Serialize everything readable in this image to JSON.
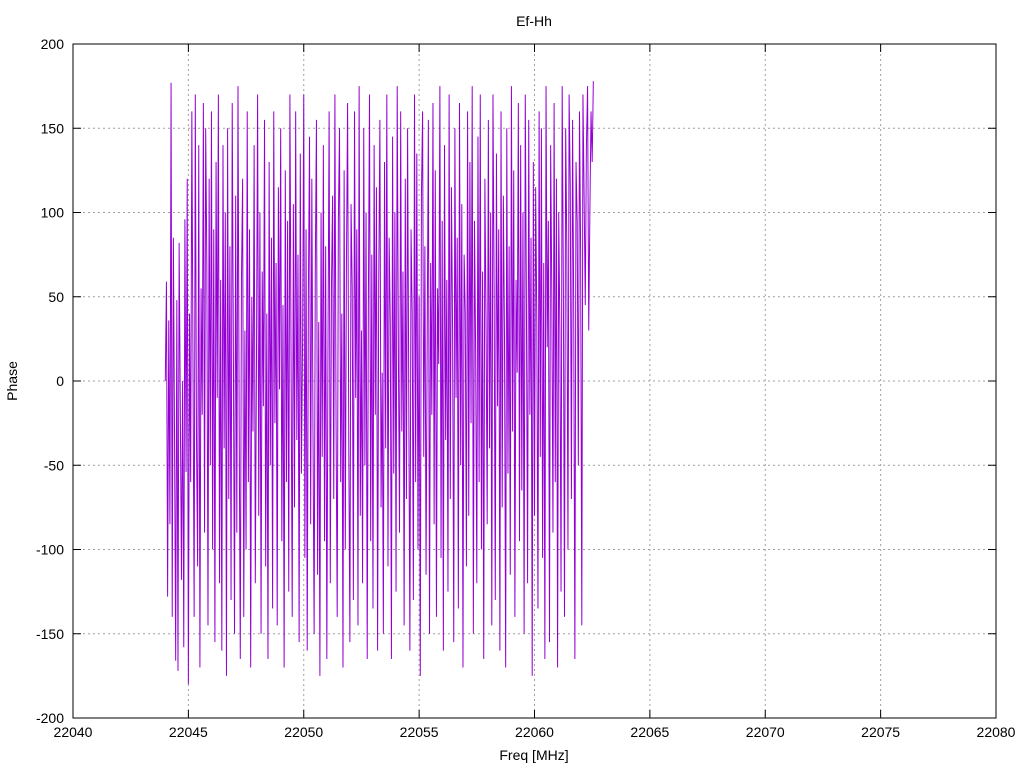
{
  "chart_data": {
    "type": "line",
    "title": "Ef-Hh",
    "xlabel": "Freq [MHz]",
    "ylabel": "Phase",
    "xlim": [
      22040,
      22080
    ],
    "ylim": [
      -200,
      200
    ],
    "xticks": [
      22040,
      22045,
      22050,
      22055,
      22060,
      22065,
      22070,
      22075,
      22080
    ],
    "yticks": [
      -200,
      -150,
      -100,
      -50,
      0,
      50,
      100,
      150,
      200
    ],
    "grid": true,
    "series_color": "#9400d3",
    "series": [
      {
        "x_start": 22044.0,
        "x_step": 0.05,
        "values": [
          0,
          59,
          -128,
          36,
          -85,
          177,
          -140,
          85,
          -33,
          -166,
          48,
          -172,
          82,
          -15,
          -118,
          0,
          -158,
          96,
          -54,
          120,
          -180,
          40,
          -60,
          160,
          10,
          -140,
          170,
          -30,
          -110,
          140,
          -170,
          55,
          -20,
          165,
          -90,
          150,
          70,
          -145,
          120,
          -50,
          160,
          -100,
          90,
          -155,
          130,
          -10,
          170,
          -120,
          60,
          -160,
          140,
          -40,
          100,
          -175,
          150,
          -70,
          80,
          -130,
          165,
          20,
          -150,
          110,
          -90,
          175,
          -20,
          -165,
          60,
          120,
          -140,
          30,
          -100,
          160,
          -60,
          90,
          -170,
          50,
          -30,
          140,
          -120,
          10,
          170,
          -80,
          100,
          -150,
          65,
          -15,
          155,
          -110,
          40,
          -165,
          130,
          -50,
          85,
          -135,
          160,
          -25,
          70,
          -145,
          115,
          -5,
          150,
          -95,
          45,
          -170,
          125,
          -60,
          95,
          -125,
          170,
          15,
          -140,
          105,
          -75,
          160,
          -35,
          75,
          -155,
          135,
          -55,
          25,
          170,
          -105,
          90,
          -160,
          50,
          145,
          -85,
          120,
          -30,
          -150,
          65,
          155,
          -115,
          35,
          -175,
          100,
          -45,
          140,
          -95,
          80,
          -165,
          20,
          160,
          -120,
          55,
          110,
          -70,
          170,
          -25,
          -140,
          95,
          150,
          -60,
          40,
          -170,
          125,
          -100,
          70,
          165,
          -35,
          -155,
          105,
          55,
          -130,
          160,
          -10,
          90,
          -145,
          175,
          -80,
          30,
          -120,
          150,
          -50,
          100,
          -165,
          45,
          170,
          -95,
          75,
          -135,
          140,
          -20,
          115,
          -160,
          60,
          155,
          -75,
          5,
          -150,
          130,
          -40,
          170,
          -110,
          85,
          35,
          -165,
          145,
          -55,
          100,
          -125,
          175,
          20,
          -90,
          160,
          -30,
          65,
          -145,
          120,
          -70,
          150,
          -5,
          -160,
          90,
          40,
          -130,
          170,
          -60,
          135,
          -100,
          50,
          -175,
          110,
          160,
          -45,
          80,
          -115,
          25,
          155,
          -150,
          70,
          -20,
          165,
          -85,
          125,
          -140,
          55,
          10,
          175,
          -105,
          95,
          -160,
          140,
          -35,
          60,
          -125,
          170,
          -70,
          115,
          30,
          -155,
          150,
          -10,
          85,
          -135,
          165,
          -50,
          105,
          -170,
          75,
          40,
          -110,
          160,
          -80,
          130,
          -25,
          175,
          -150,
          95,
          15,
          -120,
          145,
          -60,
          170,
          -100,
          65,
          -165,
          120,
          35,
          -85,
          155,
          -40,
          100,
          -145,
          170,
          55,
          -130,
          135,
          -15,
          90,
          -160,
          160,
          -75,
          110,
          25,
          -170,
          150,
          -55,
          80,
          -115,
          175,
          -30,
          125,
          -140,
          60,
          5,
          165,
          -95,
          140,
          -65,
          100,
          -150,
          170,
          45,
          -120,
          155,
          -20,
          85,
          -175,
          130,
          -80,
          115,
          35,
          -135,
          160,
          -45,
          150,
          -105,
          70,
          -165,
          175,
          20,
          95,
          -155,
          140,
          50,
          -90,
          165,
          -60,
          120,
          -170,
          100,
          30,
          -125,
          175,
          60,
          -140,
          150,
          80,
          -100,
          170,
          115,
          -70,
          155,
          40,
          -165,
          130,
          95,
          -50,
          160,
          75,
          -145,
          170,
          110,
          45,
          140,
          175,
          30,
          100,
          160,
          130,
          178
        ]
      }
    ]
  }
}
